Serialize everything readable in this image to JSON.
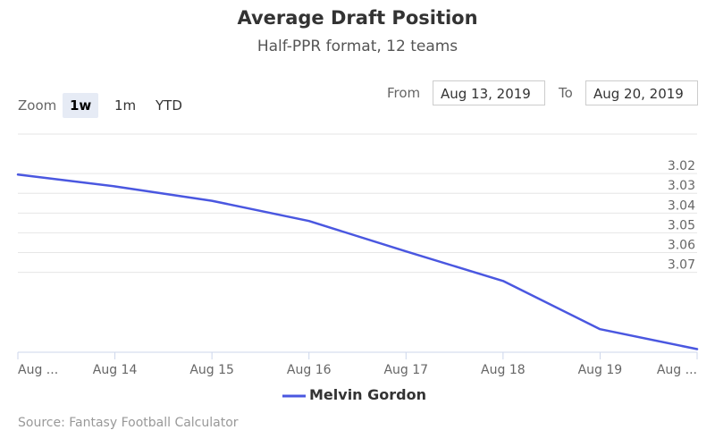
{
  "title": "Average Draft Position",
  "subtitle": "Half-PPR format, 12 teams",
  "zoom": {
    "label": "Zoom",
    "buttons": [
      "1w",
      "1m",
      "YTD"
    ],
    "active": "1w"
  },
  "range": {
    "from_label": "From",
    "from_value": "Aug 13, 2019",
    "to_label": "To",
    "to_value": "Aug 20, 2019"
  },
  "legend": {
    "series_name": "Melvin Gordon"
  },
  "credit": "Source: Fantasy Football Calculator",
  "colors": {
    "series": "#4a57e0",
    "grid": "#e6e6e6",
    "zoom_active_bg": "#e6ebf5"
  },
  "chart_data": {
    "type": "line",
    "title": "Average Draft Position",
    "subtitle": "Half-PPR format, 12 teams",
    "x": [
      "Aug 13",
      "Aug 14",
      "Aug 15",
      "Aug 16",
      "Aug 17",
      "Aug 18",
      "Aug 19",
      "Aug 20"
    ],
    "x_tick_labels": [
      "Aug ...",
      "Aug 14",
      "Aug 15",
      "Aug 16",
      "Aug 17",
      "Aug 18",
      "Aug 19",
      "Aug ..."
    ],
    "series": [
      {
        "name": "Melvin Gordon",
        "values": [
          3.0205,
          3.0265,
          3.0338,
          3.044,
          3.0594,
          3.0744,
          3.0988,
          3.1089
        ]
      }
    ],
    "y_ticks": [
      "3.02",
      "3.03",
      "3.04",
      "3.05",
      "3.06",
      "3.07"
    ],
    "y_tick_values": [
      3.02,
      3.03,
      3.04,
      3.05,
      3.06,
      3.07
    ],
    "ylim": [
      3.0,
      3.1105
    ],
    "y_reversed": true,
    "y_axis_side": "right",
    "grid": true,
    "legend_position": "bottom-center"
  }
}
